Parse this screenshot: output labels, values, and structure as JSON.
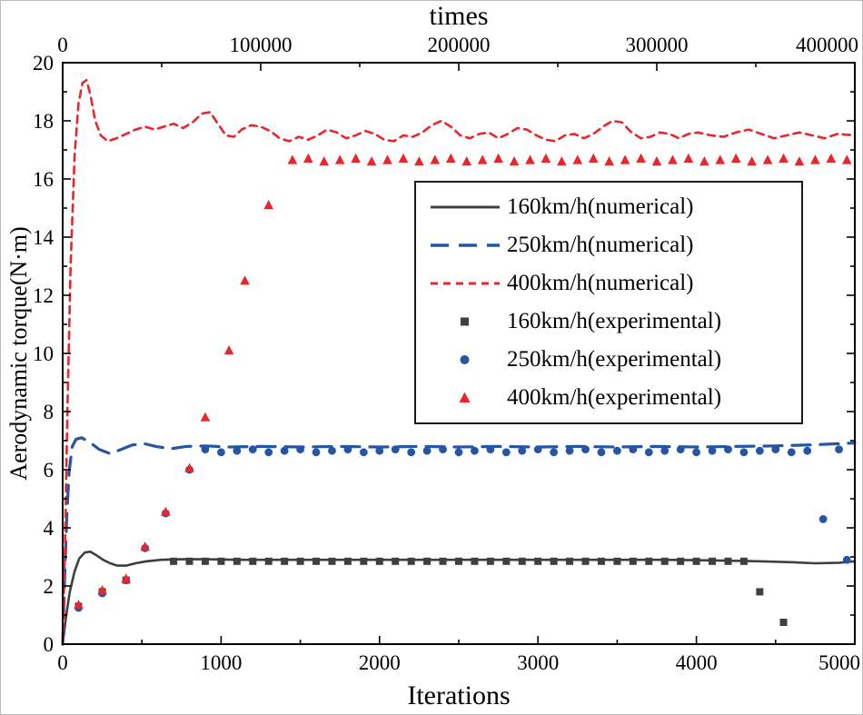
{
  "chart_data": {
    "type": "line",
    "title": "",
    "x_bottom_axis": {
      "label": "Iterations",
      "min": 0,
      "max": 5000,
      "major_ticks": [
        0,
        1000,
        2000,
        3000,
        4000,
        5000
      ],
      "minor_step": 500
    },
    "x_top_axis": {
      "label": "times",
      "min": 0,
      "max": 400000,
      "major_ticks": [
        0,
        100000,
        200000,
        300000,
        400000
      ],
      "minor_step": 50000
    },
    "y_axis": {
      "label": "Aerodynamic torque(N·m)",
      "min": 0,
      "max": 20,
      "major_ticks": [
        0,
        2,
        4,
        6,
        8,
        10,
        12,
        14,
        16,
        18,
        20
      ],
      "minor_step": 1
    },
    "grid": false,
    "legend_position": "upper-middle-right",
    "colors": {
      "series_160": "#3f3f3f",
      "series_250": "#2456a4",
      "series_400": "#e8262b"
    },
    "series_lines": [
      {
        "name": "160km/h(numerical)",
        "color_key": "series_160",
        "dash": "solid",
        "points": [
          [
            0,
            0
          ],
          [
            20,
            0.9
          ],
          [
            45,
            1.8
          ],
          [
            75,
            2.5
          ],
          [
            105,
            2.95
          ],
          [
            140,
            3.15
          ],
          [
            175,
            3.18
          ],
          [
            215,
            3.05
          ],
          [
            255,
            2.9
          ],
          [
            300,
            2.78
          ],
          [
            345,
            2.7
          ],
          [
            400,
            2.7
          ],
          [
            460,
            2.78
          ],
          [
            530,
            2.85
          ],
          [
            620,
            2.9
          ],
          [
            750,
            2.92
          ],
          [
            900,
            2.92
          ],
          [
            1100,
            2.9
          ],
          [
            1400,
            2.9
          ],
          [
            1700,
            2.9
          ],
          [
            2000,
            2.9
          ],
          [
            2300,
            2.9
          ],
          [
            2600,
            2.9
          ],
          [
            2900,
            2.9
          ],
          [
            3200,
            2.9
          ],
          [
            3500,
            2.9
          ],
          [
            3800,
            2.9
          ],
          [
            4100,
            2.88
          ],
          [
            4400,
            2.85
          ],
          [
            4600,
            2.82
          ],
          [
            4750,
            2.78
          ],
          [
            4900,
            2.8
          ],
          [
            5000,
            2.85
          ]
        ]
      },
      {
        "name": "250km/h(numerical)",
        "color_key": "series_250",
        "dash": "long",
        "points": [
          [
            0,
            0
          ],
          [
            12,
            2.2
          ],
          [
            25,
            4.3
          ],
          [
            40,
            5.9
          ],
          [
            60,
            6.8
          ],
          [
            85,
            7.05
          ],
          [
            120,
            7.1
          ],
          [
            170,
            6.95
          ],
          [
            230,
            6.7
          ],
          [
            300,
            6.55
          ],
          [
            370,
            6.7
          ],
          [
            440,
            6.85
          ],
          [
            510,
            6.9
          ],
          [
            590,
            6.8
          ],
          [
            680,
            6.72
          ],
          [
            780,
            6.8
          ],
          [
            900,
            6.82
          ],
          [
            1050,
            6.78
          ],
          [
            1250,
            6.8
          ],
          [
            1500,
            6.78
          ],
          [
            1750,
            6.8
          ],
          [
            2000,
            6.78
          ],
          [
            2250,
            6.8
          ],
          [
            2500,
            6.78
          ],
          [
            2750,
            6.8
          ],
          [
            3000,
            6.78
          ],
          [
            3250,
            6.8
          ],
          [
            3500,
            6.78
          ],
          [
            3750,
            6.8
          ],
          [
            4000,
            6.78
          ],
          [
            4250,
            6.8
          ],
          [
            4500,
            6.82
          ],
          [
            4750,
            6.86
          ],
          [
            5000,
            6.92
          ]
        ]
      },
      {
        "name": "400km/h(numerical)",
        "color_key": "series_400",
        "dash": "short",
        "points": [
          [
            0,
            0
          ],
          [
            15,
            3.5
          ],
          [
            30,
            8
          ],
          [
            50,
            13
          ],
          [
            75,
            16.8
          ],
          [
            100,
            18.6
          ],
          [
            125,
            19.3
          ],
          [
            150,
            19.4
          ],
          [
            175,
            18.9
          ],
          [
            205,
            18.0
          ],
          [
            240,
            17.5
          ],
          [
            285,
            17.3
          ],
          [
            340,
            17.4
          ],
          [
            400,
            17.55
          ],
          [
            460,
            17.7
          ],
          [
            520,
            17.8
          ],
          [
            580,
            17.7
          ],
          [
            640,
            17.8
          ],
          [
            700,
            17.9
          ],
          [
            760,
            17.75
          ],
          [
            820,
            17.95
          ],
          [
            880,
            18.25
          ],
          [
            930,
            18.3
          ],
          [
            980,
            17.9
          ],
          [
            1030,
            17.5
          ],
          [
            1080,
            17.45
          ],
          [
            1130,
            17.7
          ],
          [
            1190,
            17.85
          ],
          [
            1250,
            17.8
          ],
          [
            1310,
            17.65
          ],
          [
            1370,
            17.4
          ],
          [
            1430,
            17.3
          ],
          [
            1490,
            17.45
          ],
          [
            1550,
            17.35
          ],
          [
            1610,
            17.5
          ],
          [
            1670,
            17.7
          ],
          [
            1730,
            17.6
          ],
          [
            1790,
            17.4
          ],
          [
            1850,
            17.5
          ],
          [
            1910,
            17.65
          ],
          [
            1970,
            17.55
          ],
          [
            2030,
            17.35
          ],
          [
            2090,
            17.3
          ],
          [
            2150,
            17.5
          ],
          [
            2210,
            17.45
          ],
          [
            2270,
            17.6
          ],
          [
            2330,
            17.85
          ],
          [
            2390,
            18.0
          ],
          [
            2450,
            17.8
          ],
          [
            2510,
            17.5
          ],
          [
            2570,
            17.4
          ],
          [
            2630,
            17.55
          ],
          [
            2690,
            17.6
          ],
          [
            2750,
            17.4
          ],
          [
            2810,
            17.55
          ],
          [
            2870,
            17.75
          ],
          [
            2930,
            17.7
          ],
          [
            2990,
            17.5
          ],
          [
            3050,
            17.35
          ],
          [
            3110,
            17.3
          ],
          [
            3170,
            17.5
          ],
          [
            3230,
            17.55
          ],
          [
            3290,
            17.4
          ],
          [
            3350,
            17.55
          ],
          [
            3410,
            17.8
          ],
          [
            3470,
            18.0
          ],
          [
            3530,
            17.95
          ],
          [
            3590,
            17.6
          ],
          [
            3650,
            17.4
          ],
          [
            3710,
            17.45
          ],
          [
            3770,
            17.6
          ],
          [
            3830,
            17.55
          ],
          [
            3890,
            17.4
          ],
          [
            3950,
            17.55
          ],
          [
            4010,
            17.6
          ],
          [
            4090,
            17.5
          ],
          [
            4170,
            17.45
          ],
          [
            4250,
            17.6
          ],
          [
            4330,
            17.7
          ],
          [
            4410,
            17.55
          ],
          [
            4490,
            17.4
          ],
          [
            4570,
            17.5
          ],
          [
            4650,
            17.6
          ],
          [
            4730,
            17.5
          ],
          [
            4810,
            17.4
          ],
          [
            4890,
            17.55
          ],
          [
            5000,
            17.5
          ]
        ]
      }
    ],
    "series_scatter": [
      {
        "name": "160km/h(experimental)",
        "color_key": "series_160",
        "marker": "square",
        "points": [
          [
            100,
            1.3
          ],
          [
            250,
            1.8
          ],
          [
            400,
            2.2
          ],
          [
            700,
            2.85
          ],
          [
            800,
            2.85
          ],
          [
            900,
            2.85
          ],
          [
            1000,
            2.85
          ],
          [
            1100,
            2.85
          ],
          [
            1200,
            2.85
          ],
          [
            1300,
            2.85
          ],
          [
            1400,
            2.85
          ],
          [
            1500,
            2.85
          ],
          [
            1600,
            2.85
          ],
          [
            1700,
            2.85
          ],
          [
            1800,
            2.85
          ],
          [
            1900,
            2.85
          ],
          [
            2000,
            2.85
          ],
          [
            2100,
            2.85
          ],
          [
            2200,
            2.85
          ],
          [
            2300,
            2.85
          ],
          [
            2400,
            2.85
          ],
          [
            2500,
            2.85
          ],
          [
            2600,
            2.85
          ],
          [
            2700,
            2.85
          ],
          [
            2800,
            2.85
          ],
          [
            2900,
            2.85
          ],
          [
            3000,
            2.85
          ],
          [
            3100,
            2.85
          ],
          [
            3200,
            2.85
          ],
          [
            3300,
            2.85
          ],
          [
            3400,
            2.85
          ],
          [
            3500,
            2.85
          ],
          [
            3600,
            2.85
          ],
          [
            3700,
            2.85
          ],
          [
            3800,
            2.85
          ],
          [
            3900,
            2.85
          ],
          [
            4000,
            2.85
          ],
          [
            4100,
            2.85
          ],
          [
            4200,
            2.85
          ],
          [
            4300,
            2.85
          ],
          [
            4400,
            1.8
          ],
          [
            4550,
            0.75
          ]
        ]
      },
      {
        "name": "250km/h(experimental)",
        "color_key": "series_250",
        "marker": "circle",
        "points": [
          [
            100,
            1.25
          ],
          [
            250,
            1.75
          ],
          [
            400,
            2.2
          ],
          [
            520,
            3.3
          ],
          [
            650,
            4.5
          ],
          [
            800,
            6.0
          ],
          [
            900,
            6.7
          ],
          [
            1000,
            6.6
          ],
          [
            1100,
            6.65
          ],
          [
            1200,
            6.7
          ],
          [
            1300,
            6.6
          ],
          [
            1400,
            6.65
          ],
          [
            1500,
            6.7
          ],
          [
            1600,
            6.6
          ],
          [
            1700,
            6.65
          ],
          [
            1800,
            6.7
          ],
          [
            1900,
            6.6
          ],
          [
            2000,
            6.65
          ],
          [
            2100,
            6.7
          ],
          [
            2200,
            6.6
          ],
          [
            2300,
            6.65
          ],
          [
            2400,
            6.7
          ],
          [
            2500,
            6.6
          ],
          [
            2600,
            6.65
          ],
          [
            2700,
            6.7
          ],
          [
            2800,
            6.6
          ],
          [
            2900,
            6.65
          ],
          [
            3000,
            6.7
          ],
          [
            3100,
            6.6
          ],
          [
            3200,
            6.65
          ],
          [
            3300,
            6.7
          ],
          [
            3400,
            6.6
          ],
          [
            3500,
            6.65
          ],
          [
            3600,
            6.7
          ],
          [
            3700,
            6.6
          ],
          [
            3800,
            6.65
          ],
          [
            3900,
            6.7
          ],
          [
            4000,
            6.6
          ],
          [
            4100,
            6.65
          ],
          [
            4200,
            6.7
          ],
          [
            4300,
            6.6
          ],
          [
            4400,
            6.65
          ],
          [
            4500,
            6.7
          ],
          [
            4600,
            6.6
          ],
          [
            4700,
            6.65
          ],
          [
            4900,
            6.7
          ],
          [
            4800,
            4.3
          ],
          [
            4950,
            2.9
          ]
        ]
      },
      {
        "name": "400km/h(experimental)",
        "color_key": "series_400",
        "marker": "triangle",
        "points": [
          [
            100,
            1.35
          ],
          [
            250,
            1.85
          ],
          [
            400,
            2.25
          ],
          [
            520,
            3.35
          ],
          [
            650,
            4.55
          ],
          [
            800,
            6.05
          ],
          [
            900,
            7.8
          ],
          [
            1050,
            10.1
          ],
          [
            1150,
            12.5
          ],
          [
            1300,
            15.1
          ],
          [
            1450,
            16.65
          ],
          [
            1550,
            16.7
          ],
          [
            1650,
            16.6
          ],
          [
            1750,
            16.65
          ],
          [
            1850,
            16.7
          ],
          [
            1950,
            16.6
          ],
          [
            2050,
            16.65
          ],
          [
            2150,
            16.7
          ],
          [
            2250,
            16.6
          ],
          [
            2350,
            16.65
          ],
          [
            2450,
            16.7
          ],
          [
            2550,
            16.6
          ],
          [
            2650,
            16.65
          ],
          [
            2750,
            16.7
          ],
          [
            2850,
            16.6
          ],
          [
            2950,
            16.65
          ],
          [
            3050,
            16.7
          ],
          [
            3150,
            16.6
          ],
          [
            3250,
            16.65
          ],
          [
            3350,
            16.7
          ],
          [
            3450,
            16.6
          ],
          [
            3550,
            16.65
          ],
          [
            3650,
            16.7
          ],
          [
            3750,
            16.6
          ],
          [
            3850,
            16.65
          ],
          [
            3950,
            16.7
          ],
          [
            4050,
            16.6
          ],
          [
            4150,
            16.65
          ],
          [
            4250,
            16.7
          ],
          [
            4350,
            16.6
          ],
          [
            4450,
            16.65
          ],
          [
            4550,
            16.7
          ],
          [
            4650,
            16.6
          ],
          [
            4750,
            16.65
          ],
          [
            4850,
            16.7
          ],
          [
            4950,
            16.65
          ]
        ]
      }
    ],
    "legend": {
      "entries": [
        {
          "label": "160km/h(numerical)"
        },
        {
          "label": "250km/h(numerical)"
        },
        {
          "label": "400km/h(numerical)"
        },
        {
          "label": "160km/h(experimental)"
        },
        {
          "label": "250km/h(experimental)"
        },
        {
          "label": "400km/h(experimental)"
        }
      ]
    }
  }
}
